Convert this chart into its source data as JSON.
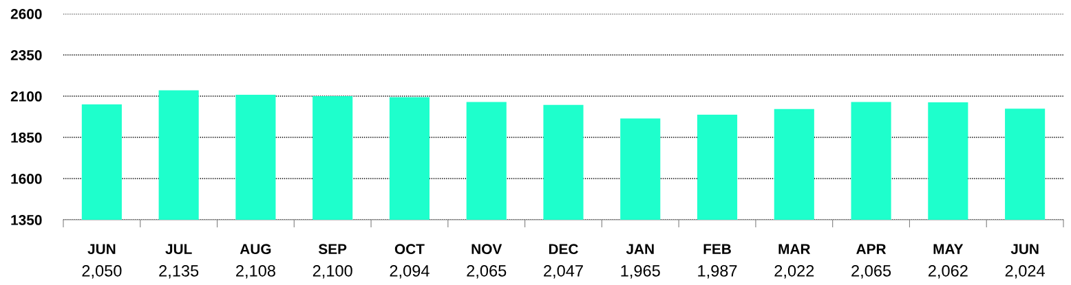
{
  "chart_data": {
    "type": "bar",
    "categories": [
      "JUN",
      "JUL",
      "AUG",
      "SEP",
      "OCT",
      "NOV",
      "DEC",
      "JAN",
      "FEB",
      "MAR",
      "APR",
      "MAY",
      "JUN"
    ],
    "values": [
      2050,
      2135,
      2108,
      2100,
      2094,
      2065,
      2047,
      1965,
      1987,
      2022,
      2065,
      2062,
      2024
    ],
    "value_labels": [
      "2,050",
      "2,135",
      "2,108",
      "2,100",
      "2,094",
      "2,065",
      "2,047",
      "1,965",
      "1,987",
      "2,022",
      "2,065",
      "2,062",
      "2,024"
    ],
    "color": "#1effcc",
    "ylim": [
      1350,
      2600
    ],
    "yticks": [
      1350,
      1600,
      1850,
      2100,
      2350,
      2600
    ],
    "grid": "y"
  }
}
